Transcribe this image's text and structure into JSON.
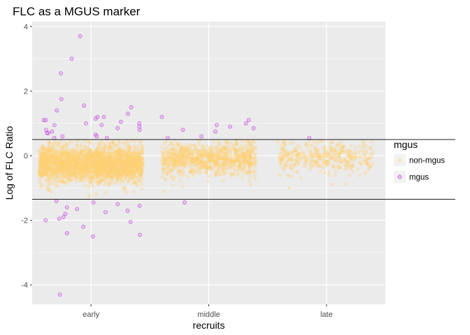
{
  "chart_data": {
    "type": "scatter",
    "title": "FLC as a MGUS marker",
    "xlabel": "recruits",
    "ylabel": "Log of FLC Ratio",
    "categories": [
      "early",
      "middle",
      "late"
    ],
    "y_ticks": [
      "-4",
      "-2",
      "0",
      "2",
      "4"
    ],
    "ylim": [
      -4.6,
      4.15
    ],
    "grid": true,
    "reference_lines": [
      0.5,
      -1.35
    ],
    "legend": {
      "title": "mgus",
      "position": "right",
      "entries": [
        "non-mgus",
        "mgus"
      ]
    },
    "colors": {
      "non-mgus": "#ffd173",
      "mgus": "#e36ff5",
      "mgus_stroke": "#b23fd0",
      "panel": "#ebebeb",
      "grid": "#ffffff"
    },
    "series": [
      {
        "name": "non-mgus",
        "points": [
          {
            "x": "early",
            "y": -0.1
          },
          {
            "x": "early",
            "y": -0.25
          },
          {
            "x": "early",
            "y": -0.4
          },
          {
            "x": "early",
            "y": 0.1
          },
          {
            "x": "early",
            "y": 0.3
          },
          {
            "x": "early",
            "y": -0.6
          },
          {
            "x": "early",
            "y": -0.8
          },
          {
            "x": "early",
            "y": -0.3
          },
          {
            "x": "early",
            "y": -0.15
          },
          {
            "x": "early",
            "y": -1.0
          },
          {
            "x": "early",
            "y": -1.2
          },
          {
            "x": "early",
            "y": 0.4
          },
          {
            "x": "middle",
            "y": -0.05
          },
          {
            "x": "middle",
            "y": -0.2
          },
          {
            "x": "middle",
            "y": 0.2
          },
          {
            "x": "middle",
            "y": 0.4
          },
          {
            "x": "middle",
            "y": -0.5
          },
          {
            "x": "middle",
            "y": -0.35
          },
          {
            "x": "middle",
            "y": -0.9
          },
          {
            "x": "middle",
            "y": -1.1
          },
          {
            "x": "middle",
            "y": 0.1
          },
          {
            "x": "late",
            "y": 0.0
          },
          {
            "x": "late",
            "y": -0.1
          },
          {
            "x": "late",
            "y": 0.25
          },
          {
            "x": "late",
            "y": 0.45
          },
          {
            "x": "late",
            "y": -0.4
          },
          {
            "x": "late",
            "y": -0.2
          },
          {
            "x": "late",
            "y": -0.9
          },
          {
            "x": "late",
            "y": -1.0
          },
          {
            "x": "late",
            "y": -0.6
          }
        ]
      },
      {
        "name": "mgus",
        "points": [
          {
            "x": "early",
            "y": 3.7
          },
          {
            "x": "early",
            "y": 3.0
          },
          {
            "x": "early",
            "y": 2.55
          },
          {
            "x": "early",
            "y": 1.75
          },
          {
            "x": "early",
            "y": 1.55
          },
          {
            "x": "early",
            "y": 1.5
          },
          {
            "x": "early",
            "y": 1.4
          },
          {
            "x": "early",
            "y": 1.3
          },
          {
            "x": "early",
            "y": 1.2
          },
          {
            "x": "early",
            "y": 1.15
          },
          {
            "x": "early",
            "y": 1.1
          },
          {
            "x": "early",
            "y": 1.05
          },
          {
            "x": "early",
            "y": 1.0
          },
          {
            "x": "early",
            "y": 0.95
          },
          {
            "x": "early",
            "y": 0.9
          },
          {
            "x": "early",
            "y": 0.85
          },
          {
            "x": "early",
            "y": 0.8
          },
          {
            "x": "early",
            "y": 0.75
          },
          {
            "x": "early",
            "y": 0.7
          },
          {
            "x": "early",
            "y": 0.65
          },
          {
            "x": "early",
            "y": 0.6
          },
          {
            "x": "early",
            "y": 0.55
          },
          {
            "x": "early",
            "y": 0.55
          },
          {
            "x": "early",
            "y": 1.1
          },
          {
            "x": "early",
            "y": 0.7
          },
          {
            "x": "early",
            "y": 0.95
          },
          {
            "x": "early",
            "y": 1.2
          },
          {
            "x": "early",
            "y": 0.8
          },
          {
            "x": "early",
            "y": 0.6
          },
          {
            "x": "early",
            "y": 1.0
          },
          {
            "x": "early",
            "y": -1.4
          },
          {
            "x": "early",
            "y": -1.5
          },
          {
            "x": "early",
            "y": -1.55
          },
          {
            "x": "early",
            "y": -1.6
          },
          {
            "x": "early",
            "y": -1.65
          },
          {
            "x": "early",
            "y": -1.7
          },
          {
            "x": "early",
            "y": -1.8
          },
          {
            "x": "early",
            "y": -1.9
          },
          {
            "x": "early",
            "y": -1.95
          },
          {
            "x": "early",
            "y": -2.0
          },
          {
            "x": "early",
            "y": -2.05
          },
          {
            "x": "early",
            "y": -2.2
          },
          {
            "x": "early",
            "y": -2.4
          },
          {
            "x": "early",
            "y": -2.45
          },
          {
            "x": "early",
            "y": -2.5
          },
          {
            "x": "early",
            "y": -1.45
          },
          {
            "x": "early",
            "y": -1.75
          },
          {
            "x": "early",
            "y": -4.3
          },
          {
            "x": "middle",
            "y": 1.2
          },
          {
            "x": "middle",
            "y": 1.1
          },
          {
            "x": "middle",
            "y": 1.0
          },
          {
            "x": "middle",
            "y": 0.95
          },
          {
            "x": "middle",
            "y": 0.9
          },
          {
            "x": "middle",
            "y": 0.85
          },
          {
            "x": "middle",
            "y": 0.8
          },
          {
            "x": "middle",
            "y": 0.75
          },
          {
            "x": "middle",
            "y": 0.6
          },
          {
            "x": "middle",
            "y": 0.55
          },
          {
            "x": "middle",
            "y": -1.45
          },
          {
            "x": "late",
            "y": 0.55
          }
        ]
      }
    ]
  }
}
